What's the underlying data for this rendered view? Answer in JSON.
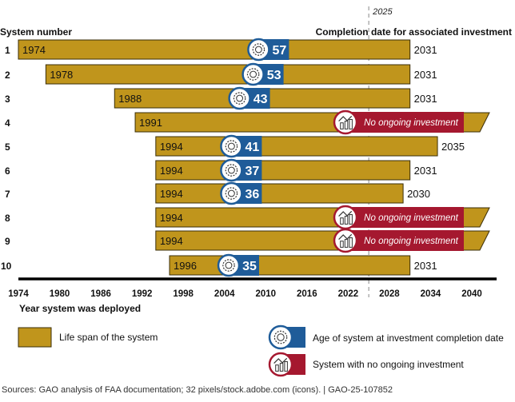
{
  "chart_data": {
    "type": "gantt-bar",
    "title": "",
    "y_header": "System number",
    "right_header": "Completion date for associated investment",
    "xlabel": "Year system was deployed",
    "xlim": [
      1974,
      2040
    ],
    "xticks": [
      1974,
      1980,
      1986,
      1992,
      1998,
      2004,
      2010,
      2016,
      2022,
      2028,
      2034,
      2040
    ],
    "reference_line": {
      "year": 2025,
      "label": "2025"
    },
    "no_investment_label": "No ongoing investment",
    "systems": [
      {
        "id": "1",
        "deployed": 1974,
        "completion": 2031,
        "age": 57
      },
      {
        "id": "2",
        "deployed": 1978,
        "completion": 2031,
        "age": 53
      },
      {
        "id": "3",
        "deployed": 1988,
        "completion": 2031,
        "age": 43
      },
      {
        "id": "4",
        "deployed": 1991,
        "completion": null,
        "age": null
      },
      {
        "id": "5",
        "deployed": 1994,
        "completion": 2035,
        "age": 41
      },
      {
        "id": "6",
        "deployed": 1994,
        "completion": 2031,
        "age": 37
      },
      {
        "id": "7",
        "deployed": 1994,
        "completion": 2030,
        "age": 36
      },
      {
        "id": "8",
        "deployed": 1994,
        "completion": null,
        "age": null
      },
      {
        "id": "9",
        "deployed": 1994,
        "completion": null,
        "age": null
      },
      {
        "id": "10",
        "deployed": 1996,
        "completion": 2031,
        "age": 35
      }
    ],
    "legend": [
      {
        "key": "lifespan",
        "label": "Life span of the system"
      },
      {
        "key": "age",
        "label": "Age of system at investment completion date"
      },
      {
        "key": "none",
        "label": "System with no ongoing investment"
      }
    ]
  },
  "colors": {
    "bar": "#C0951C",
    "bar_stroke": "#3a2e08",
    "blue": "#1F5C99",
    "red": "#A5182F"
  },
  "source": "Sources: GAO analysis of FAA documentation; 32 pixels/stock.adobe.com (icons).  |  GAO-25-107852"
}
